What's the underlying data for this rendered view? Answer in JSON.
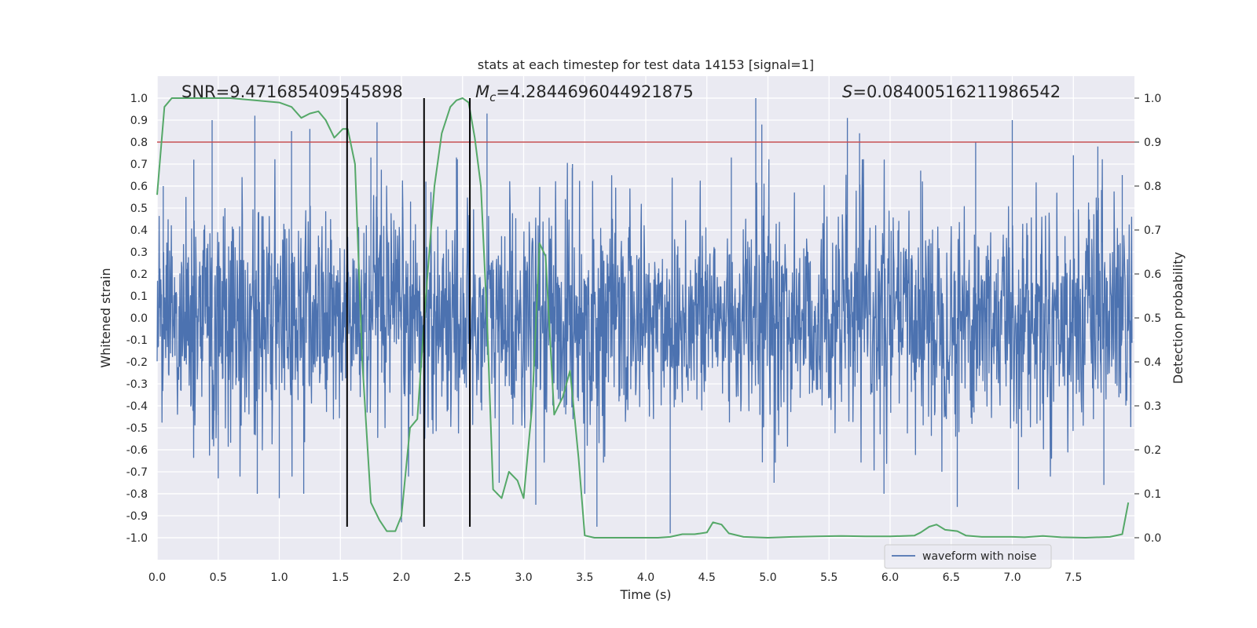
{
  "chart_data": {
    "type": "line",
    "title": "stats at each timestep for test data 14153 [signal=1]",
    "xlabel": "Time (s)",
    "ylabel": "Whitened strain",
    "y2label": "Detection probability",
    "xlim": [
      0.0,
      8.0
    ],
    "ylim": [
      -1.1,
      1.1
    ],
    "y2lim": [
      -0.05,
      1.05
    ],
    "xticks": [
      0.0,
      0.5,
      1.0,
      1.5,
      2.0,
      2.5,
      3.0,
      3.5,
      4.0,
      4.5,
      5.0,
      5.5,
      6.0,
      6.5,
      7.0,
      7.5
    ],
    "xtick_labels": [
      "0.0",
      "0.5",
      "1.0",
      "1.5",
      "2.0",
      "2.5",
      "3.0",
      "3.5",
      "4.0",
      "4.5",
      "5.0",
      "5.5",
      "6.0",
      "6.5",
      "7.0",
      "7.5"
    ],
    "yticks": [
      1.0,
      0.9,
      0.8,
      0.7,
      0.6,
      0.5,
      0.4,
      0.3,
      0.2,
      0.1,
      0.0,
      -0.1,
      -0.2,
      -0.3,
      -0.4,
      -0.5,
      -0.6,
      -0.7,
      -0.8,
      -0.9,
      -1.0
    ],
    "ytick_labels": [
      "1.0",
      "0.9",
      "0.8",
      "0.7",
      "0.6",
      "0.5",
      "0.4",
      "0.3",
      "0.2",
      "0.1",
      "0.0",
      "-0.1",
      "-0.2",
      "-0.3",
      "-0.4",
      "-0.5",
      "-0.6",
      "-0.7",
      "-0.8",
      "-0.9",
      "-1.0"
    ],
    "y2ticks": [
      1.0,
      0.9,
      0.8,
      0.7,
      0.6,
      0.5,
      0.4,
      0.3,
      0.2,
      0.1,
      0.0
    ],
    "y2tick_labels": [
      "1.0",
      "0.9",
      "0.8",
      "0.7",
      "0.6",
      "0.5",
      "0.4",
      "0.3",
      "0.2",
      "0.1",
      "0.0"
    ],
    "annotations": {
      "snr": "SNR=9.471685409545898",
      "mc_symbol": "M",
      "mc_sub": "c",
      "mc_value": "=4.2844696044921875",
      "s_symbol": "S",
      "s_value": "=0.08400516211986542"
    },
    "threshold": {
      "y2": 0.9,
      "color": "#c44e52"
    },
    "vlines": [
      {
        "x": 1.555,
        "ymin": -0.95,
        "ymax": 1.0
      },
      {
        "x": 2.185,
        "ymin": -0.95,
        "ymax": 1.0
      },
      {
        "x": 2.56,
        "ymin": -0.95,
        "ymax": 1.0
      }
    ],
    "legend": {
      "position": "lower-right",
      "entries": [
        "waveform with noise"
      ]
    },
    "series": [
      {
        "name": "waveform with noise",
        "axis": "left",
        "color": "#4c72b0",
        "style": "noise",
        "envelope": 0.33,
        "peaks": [
          {
            "x": 0.05,
            "y": 0.6
          },
          {
            "x": 0.3,
            "y": 0.72
          },
          {
            "x": 0.45,
            "y": 0.9
          },
          {
            "x": 0.5,
            "y": -0.73
          },
          {
            "x": 0.8,
            "y": 0.92
          },
          {
            "x": 0.82,
            "y": -0.8
          },
          {
            "x": 1.0,
            "y": -0.82
          },
          {
            "x": 1.1,
            "y": 0.85
          },
          {
            "x": 1.2,
            "y": -0.8
          },
          {
            "x": 1.25,
            "y": 0.86
          },
          {
            "x": 1.75,
            "y": 0.73
          },
          {
            "x": 1.8,
            "y": 0.89
          },
          {
            "x": 2.0,
            "y": -0.93
          },
          {
            "x": 2.2,
            "y": 0.62
          },
          {
            "x": 2.45,
            "y": 0.73
          },
          {
            "x": 2.7,
            "y": 0.93
          },
          {
            "x": 2.8,
            "y": -0.75
          },
          {
            "x": 3.1,
            "y": -0.85
          },
          {
            "x": 3.4,
            "y": 0.7
          },
          {
            "x": 3.5,
            "y": -0.8
          },
          {
            "x": 3.6,
            "y": -0.95
          },
          {
            "x": 4.2,
            "y": -0.98
          },
          {
            "x": 4.7,
            "y": 0.73
          },
          {
            "x": 4.9,
            "y": 1.0
          },
          {
            "x": 4.95,
            "y": 0.88
          },
          {
            "x": 5.05,
            "y": -0.75
          },
          {
            "x": 5.65,
            "y": 0.91
          },
          {
            "x": 5.75,
            "y": 0.84
          },
          {
            "x": 5.95,
            "y": -0.8
          },
          {
            "x": 6.25,
            "y": 0.67
          },
          {
            "x": 6.55,
            "y": -0.86
          },
          {
            "x": 6.7,
            "y": 0.8
          },
          {
            "x": 7.0,
            "y": 0.9
          },
          {
            "x": 7.05,
            "y": -0.78
          },
          {
            "x": 7.5,
            "y": 0.74
          },
          {
            "x": 7.7,
            "y": 0.78
          },
          {
            "x": 7.75,
            "y": -0.76
          },
          {
            "x": 7.9,
            "y": 0.65
          }
        ]
      },
      {
        "name": "detection probability",
        "axis": "right",
        "color": "#55a868",
        "x": [
          0.0,
          0.06,
          0.12,
          0.2,
          0.4,
          0.6,
          0.8,
          1.0,
          1.1,
          1.18,
          1.25,
          1.32,
          1.38,
          1.45,
          1.52,
          1.56,
          1.62,
          1.68,
          1.75,
          1.82,
          1.88,
          1.95,
          2.0,
          2.07,
          2.13,
          2.2,
          2.27,
          2.33,
          2.4,
          2.45,
          2.5,
          2.55,
          2.6,
          2.65,
          2.7,
          2.75,
          2.82,
          2.88,
          2.95,
          3.0,
          3.07,
          3.13,
          3.18,
          3.25,
          3.32,
          3.38,
          3.45,
          3.5,
          3.58,
          3.7,
          3.9,
          4.1,
          4.2,
          4.3,
          4.4,
          4.5,
          4.55,
          4.62,
          4.68,
          4.8,
          5.0,
          5.2,
          5.4,
          5.6,
          5.8,
          6.0,
          6.2,
          6.25,
          6.32,
          6.38,
          6.45,
          6.55,
          6.62,
          6.75,
          7.0,
          7.1,
          7.25,
          7.4,
          7.6,
          7.8,
          7.9,
          7.95
        ],
        "y": [
          0.78,
          0.98,
          1.0,
          1.0,
          1.0,
          1.0,
          0.995,
          0.99,
          0.98,
          0.955,
          0.965,
          0.97,
          0.95,
          0.91,
          0.93,
          0.93,
          0.85,
          0.4,
          0.08,
          0.04,
          0.015,
          0.015,
          0.05,
          0.25,
          0.27,
          0.55,
          0.8,
          0.92,
          0.98,
          0.995,
          1.0,
          0.99,
          0.91,
          0.8,
          0.5,
          0.11,
          0.09,
          0.15,
          0.13,
          0.09,
          0.3,
          0.67,
          0.64,
          0.28,
          0.32,
          0.38,
          0.18,
          0.005,
          0.0,
          0.0,
          0.0,
          0.0,
          0.002,
          0.008,
          0.008,
          0.012,
          0.035,
          0.03,
          0.01,
          0.002,
          0.0,
          0.002,
          0.003,
          0.004,
          0.003,
          0.003,
          0.005,
          0.012,
          0.025,
          0.03,
          0.018,
          0.015,
          0.005,
          0.002,
          0.002,
          0.001,
          0.004,
          0.001,
          0.0,
          0.002,
          0.008,
          0.08
        ]
      }
    ]
  }
}
